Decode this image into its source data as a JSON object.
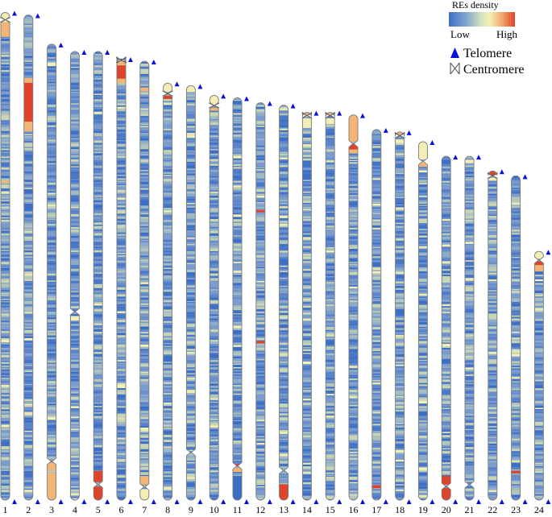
{
  "legend": {
    "title": "REs density",
    "low_label": "Low",
    "high_label": "High",
    "telomere_label": "Telomere",
    "centromere_label": "Centromere",
    "telomere_icon": "filled-triangle-icon",
    "centromere_icon": "bowtie-icon",
    "colorscale": [
      "#3b6fc6",
      "#6f97cf",
      "#a9c4c2",
      "#f3efb4",
      "#f2b574",
      "#e0432b"
    ]
  },
  "colors": {
    "telomere": "#0a12d8",
    "chromosome_outline": "#7a7a7a",
    "background": "#ffffff"
  },
  "chromosomes": [
    {
      "label": "1",
      "length": 100.0,
      "centromere": 1.5,
      "telomere_top": true,
      "telomere_bottom": true,
      "hotspots": [
        [
          0,
          2,
          "#f3efb4"
        ],
        [
          2,
          5,
          "#f2b574"
        ],
        [
          34.5,
          35,
          "#f2b574"
        ]
      ]
    },
    {
      "label": "2",
      "length": 99.5,
      "centromere": null,
      "telomere_top": true,
      "telomere_bottom": true,
      "hotspots": [
        [
          13,
          14,
          "#f2b574"
        ],
        [
          14,
          22,
          "#e0432b"
        ],
        [
          22,
          24,
          "#f2b574"
        ]
      ]
    },
    {
      "label": "3",
      "length": 93.5,
      "centromere": 91.5,
      "telomere_top": true,
      "telomere_bottom": true,
      "hotspots": [
        [
          91.8,
          93.5,
          "#f2b574"
        ],
        [
          94,
          100,
          "#f2b574"
        ]
      ]
    },
    {
      "label": "4",
      "length": 92.0,
      "centromere": 58.0,
      "telomere_top": true,
      "telomere_bottom": true,
      "hotspots": [
        [
          59,
          60,
          "#f3efb4"
        ]
      ]
    },
    {
      "label": "5",
      "length": 92.0,
      "centromere": 96.5,
      "telomere_top": true,
      "telomere_bottom": true,
      "hotspots": [
        [
          93.5,
          96,
          "#e0432b"
        ],
        [
          97,
          100,
          "#e0432b"
        ]
      ]
    },
    {
      "label": "6",
      "length": 90.5,
      "centromere": 0.3,
      "telomere_top": true,
      "telomere_bottom": true,
      "hotspots": [
        [
          0.5,
          1.5,
          "#f2b574"
        ],
        [
          1.5,
          4.5,
          "#e0432b"
        ],
        [
          4.5,
          5.5,
          "#f2b574"
        ]
      ]
    },
    {
      "label": "7",
      "length": 90.0,
      "centromere": 97.0,
      "telomere_top": true,
      "telomere_bottom": true,
      "hotspots": [
        [
          6,
          6.8,
          "#f2b574"
        ],
        [
          94.5,
          96.5,
          "#f2b574"
        ],
        [
          97.5,
          100,
          "#f3efb4"
        ]
      ]
    },
    {
      "label": "8",
      "length": 85.5,
      "centromere": 2.5,
      "telomere_top": true,
      "telomere_bottom": true,
      "hotspots": [
        [
          0,
          2,
          "#f3efb4"
        ],
        [
          3,
          3.8,
          "#e0432b"
        ]
      ]
    },
    {
      "label": "9",
      "length": 85.0,
      "centromere": 88.5,
      "telomere_top": true,
      "telomere_bottom": true,
      "hotspots": [
        [
          0,
          1.5,
          "#f3efb4"
        ]
      ]
    },
    {
      "label": "10",
      "length": 83.0,
      "centromere": 2.5,
      "telomere_top": true,
      "telomere_bottom": true,
      "hotspots": [
        [
          0,
          2.5,
          "#f3efb4"
        ],
        [
          3,
          3.8,
          "#f2b574"
        ]
      ]
    },
    {
      "label": "11",
      "length": 82.5,
      "centromere": 91.5,
      "telomere_top": true,
      "telomere_bottom": true,
      "hotspots": [
        [
          91,
          91.6,
          "#e0432b"
        ],
        [
          92,
          93,
          "#f2b574"
        ],
        [
          94,
          100,
          "#3b6fc6"
        ]
      ]
    },
    {
      "label": "12",
      "length": 81.5,
      "centromere": null,
      "telomere_top": true,
      "telomere_bottom": true,
      "hotspots": [
        [
          27,
          27.6,
          "#e0432b"
        ],
        [
          60,
          60.6,
          "#e0432b"
        ]
      ]
    },
    {
      "label": "13",
      "length": 81.0,
      "centromere": 92.5,
      "telomere_top": true,
      "telomere_bottom": true,
      "hotspots": [
        [
          96,
          100,
          "#e0432b"
        ]
      ]
    },
    {
      "label": "14",
      "length": 79.5,
      "centromere": 0.8,
      "telomere_top": true,
      "telomere_bottom": true,
      "hotspots": [
        [
          0,
          1,
          "#f2b574"
        ],
        [
          1.5,
          4,
          "#f3efb4"
        ]
      ]
    },
    {
      "label": "15",
      "length": 79.5,
      "centromere": 0.8,
      "telomere_top": true,
      "telomere_bottom": true,
      "hotspots": [
        [
          0,
          1,
          "#f2b574"
        ],
        [
          1.5,
          3,
          "#f3efb4"
        ]
      ]
    },
    {
      "label": "16",
      "length": 79.0,
      "centromere": 7.5,
      "telomere_top": true,
      "telomere_bottom": true,
      "hotspots": [
        [
          0,
          7,
          "#f2b574"
        ],
        [
          7.8,
          9,
          "#e0432b"
        ],
        [
          9,
          10,
          "#f2b574"
        ]
      ]
    },
    {
      "label": "17",
      "length": 76.0,
      "centromere": null,
      "telomere_top": true,
      "telomere_bottom": true,
      "hotspots": [
        [
          96,
          96.8,
          "#e0432b"
        ]
      ]
    },
    {
      "label": "18",
      "length": 75.5,
      "centromere": 1.0,
      "telomere_top": true,
      "telomere_bottom": true,
      "hotspots": [
        [
          0,
          1,
          "#f2b574"
        ],
        [
          2,
          3,
          "#f3efb4"
        ]
      ]
    },
    {
      "label": "19",
      "length": 73.5,
      "centromere": 5.5,
      "telomere_top": true,
      "telomere_bottom": true,
      "hotspots": [
        [
          0,
          5,
          "#f3efb4"
        ],
        [
          5.8,
          7,
          "#f2b574"
        ]
      ]
    },
    {
      "label": "20",
      "length": 70.5,
      "centromere": 96.0,
      "telomere_top": true,
      "telomere_bottom": true,
      "hotspots": [
        [
          93,
          95.5,
          "#e0432b"
        ],
        [
          96.5,
          100,
          "#e0432b"
        ]
      ]
    },
    {
      "label": "21",
      "length": 70.5,
      "centromere": 95.5,
      "telomere_top": true,
      "telomere_bottom": true,
      "hotspots": [
        [
          1,
          2,
          "#f3efb4"
        ]
      ]
    },
    {
      "label": "22",
      "length": 67.5,
      "centromere": 1.5,
      "telomere_top": true,
      "telomere_bottom": true,
      "hotspots": [
        [
          0,
          1.5,
          "#e0432b"
        ],
        [
          2,
          3,
          "#f3efb4"
        ]
      ]
    },
    {
      "label": "23",
      "length": 66.5,
      "centromere": null,
      "telomere_top": true,
      "telomere_bottom": true,
      "hotspots": [
        [
          91,
          91.8,
          "#e0432b"
        ]
      ]
    },
    {
      "label": "24",
      "length": 51.0,
      "centromere": 3.5,
      "telomere_top": true,
      "telomere_bottom": true,
      "hotspots": [
        [
          0,
          3,
          "#f3efb4"
        ],
        [
          4,
          5.5,
          "#e0432b"
        ],
        [
          5.5,
          8,
          "#f2b574"
        ]
      ]
    }
  ]
}
